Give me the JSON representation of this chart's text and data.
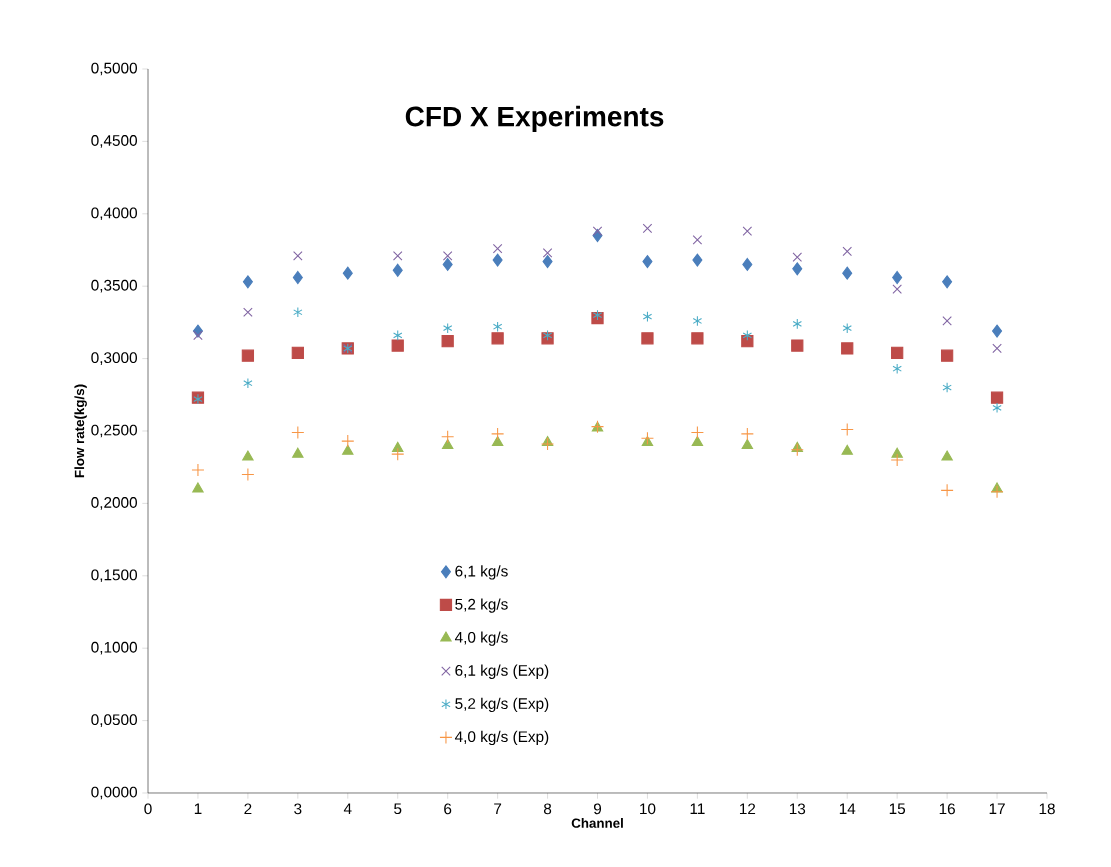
{
  "chart_data": {
    "type": "scatter",
    "title": "CFD X Experiments",
    "xlabel": "Channel",
    "ylabel": "Flow rate(kg/s)",
    "x": [
      1,
      2,
      3,
      4,
      5,
      6,
      7,
      8,
      9,
      10,
      11,
      12,
      13,
      14,
      15,
      16,
      17
    ],
    "series": [
      {
        "name": "6,1 kg/s",
        "color": "#4a7ebb",
        "marker": "diamond",
        "values": [
          0.319,
          0.353,
          0.356,
          0.359,
          0.361,
          0.365,
          0.368,
          0.367,
          0.385,
          0.367,
          0.368,
          0.365,
          0.362,
          0.359,
          0.356,
          0.353,
          0.319
        ]
      },
      {
        "name": "5,2 kg/s",
        "color": "#be4b48",
        "marker": "square",
        "values": [
          0.273,
          0.302,
          0.304,
          0.307,
          0.309,
          0.312,
          0.314,
          0.314,
          0.328,
          0.314,
          0.314,
          0.312,
          0.309,
          0.307,
          0.304,
          0.302,
          0.273
        ]
      },
      {
        "name": "4,0 kg/s",
        "color": "#98b954",
        "marker": "triangle",
        "values": [
          0.21,
          0.232,
          0.234,
          0.236,
          0.238,
          0.24,
          0.242,
          0.242,
          0.252,
          0.242,
          0.242,
          0.24,
          0.238,
          0.236,
          0.234,
          0.232,
          0.21
        ]
      },
      {
        "name": "6,1 kg/s (Exp)",
        "color": "#8064a2",
        "marker": "cross",
        "values": [
          0.316,
          0.332,
          0.371,
          0.307,
          0.371,
          0.371,
          0.376,
          0.373,
          0.388,
          0.39,
          0.382,
          0.388,
          0.37,
          0.374,
          0.348,
          0.326,
          0.307
        ]
      },
      {
        "name": "5,2 kg/s (Exp)",
        "color": "#4bacc6",
        "values": [
          0.272,
          0.283,
          0.332,
          0.307,
          0.316,
          0.321,
          0.322,
          0.316,
          0.33,
          0.329,
          0.326,
          0.316,
          0.324,
          0.321,
          0.293,
          0.28,
          0.266
        ]
      },
      {
        "name": "4,0 kg/s (Exp)",
        "color": "#f79646",
        "marker": "plus",
        "values": [
          0.223,
          0.22,
          0.249,
          0.243,
          0.234,
          0.246,
          0.248,
          0.241,
          0.253,
          0.245,
          0.249,
          0.248,
          0.237,
          0.251,
          0.23,
          0.209,
          0.208
        ]
      }
    ],
    "xlim": [
      0,
      18
    ],
    "xticks": [
      0,
      1,
      2,
      3,
      4,
      5,
      6,
      7,
      8,
      9,
      10,
      11,
      12,
      13,
      14,
      15,
      16,
      17,
      18
    ],
    "ylim": [
      0,
      0.5
    ],
    "yticks": [
      {
        "value": 0,
        "label": "0,0000"
      },
      {
        "value": 0.05,
        "label": "0,0500"
      },
      {
        "value": 0.1,
        "label": "0,1000"
      },
      {
        "value": 0.15,
        "label": "0,1500"
      },
      {
        "value": 0.2,
        "label": "0,2000"
      },
      {
        "value": 0.25,
        "label": "0,2500"
      },
      {
        "value": 0.3,
        "label": "0,3000"
      },
      {
        "value": 0.35,
        "label": "0,3500"
      },
      {
        "value": 0.4,
        "label": "0,4000"
      },
      {
        "value": 0.45,
        "label": "0,4500"
      },
      {
        "value": 0.5,
        "label": "0,5000"
      }
    ],
    "grid": false,
    "legend": "bottom left"
  }
}
